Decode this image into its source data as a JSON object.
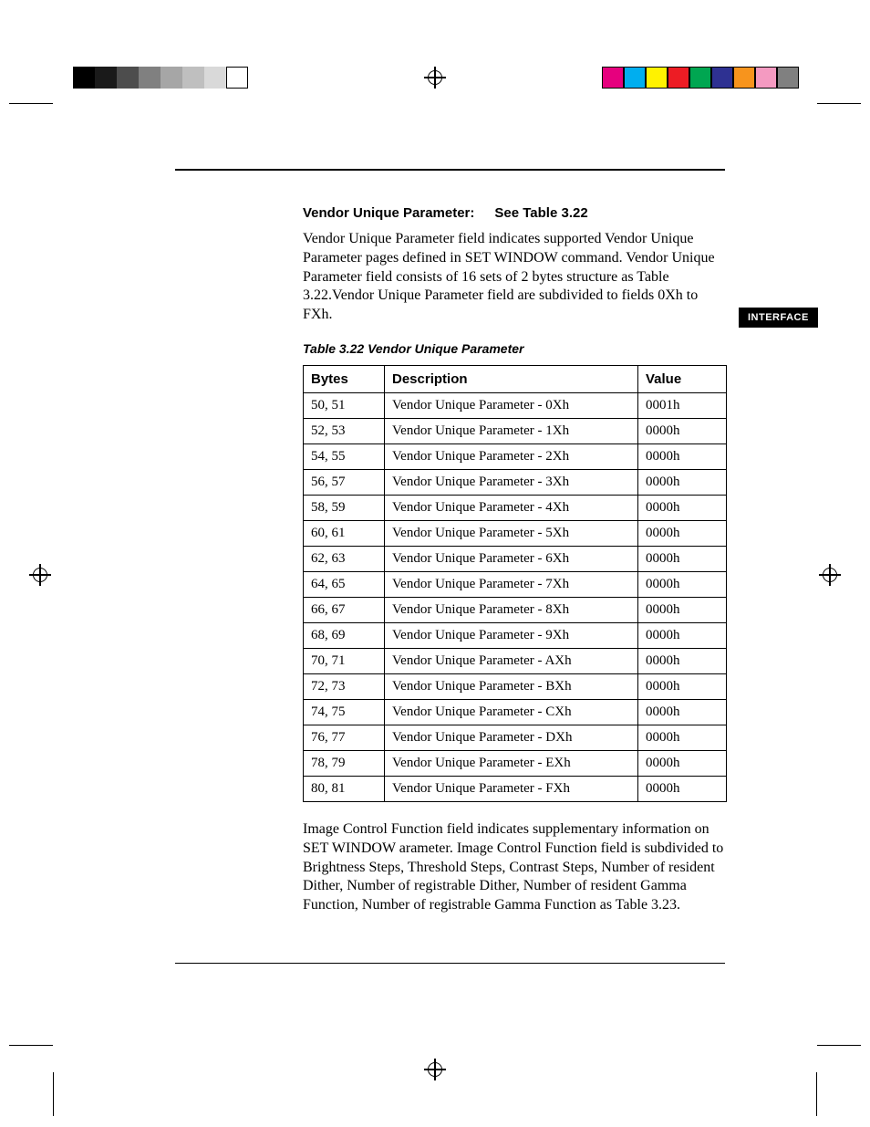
{
  "printer_marks": {
    "gray_steps": [
      "#000000",
      "#1a1a1a",
      "#4d4d4d",
      "#808080",
      "#a6a6a6",
      "#bfbfbf",
      "#d9d9d9",
      "#ffffff"
    ],
    "color_steps": [
      "#e6007e",
      "#00aeef",
      "#fff200",
      "#ed1c24",
      "#00a651",
      "#2e3192",
      "#f7941d",
      "#f49ac1",
      "#808080"
    ]
  },
  "side_tab": "INTERFACE",
  "heading_label": "Vendor Unique Parameter:",
  "heading_ref": "See Table 3.22",
  "intro_paragraph": "Vendor Unique Parameter field indicates supported Vendor Unique Parameter pages defined in SET WINDOW command. Vendor Unique Parameter field consists of 16 sets of 2 bytes structure as Table 3.22.Vendor Unique Parameter field are subdivided to fields 0Xh to FXh.",
  "table_caption": "Table 3.22 Vendor Unique Parameter",
  "table": {
    "columns": [
      "Bytes",
      "Description",
      "Value"
    ],
    "rows": [
      [
        "50, 51",
        "Vendor Unique Parameter - 0Xh",
        "0001h"
      ],
      [
        "52, 53",
        "Vendor Unique Parameter - 1Xh",
        "0000h"
      ],
      [
        "54, 55",
        "Vendor Unique Parameter - 2Xh",
        "0000h"
      ],
      [
        "56, 57",
        "Vendor Unique Parameter - 3Xh",
        "0000h"
      ],
      [
        "58, 59",
        "Vendor Unique Parameter - 4Xh",
        "0000h"
      ],
      [
        "60, 61",
        "Vendor Unique Parameter - 5Xh",
        "0000h"
      ],
      [
        "62, 63",
        "Vendor Unique Parameter - 6Xh",
        "0000h"
      ],
      [
        "64, 65",
        "Vendor Unique Parameter - 7Xh",
        "0000h"
      ],
      [
        "66, 67",
        "Vendor Unique Parameter - 8Xh",
        "0000h"
      ],
      [
        "68, 69",
        "Vendor Unique Parameter - 9Xh",
        "0000h"
      ],
      [
        "70, 71",
        "Vendor Unique Parameter - AXh",
        "0000h"
      ],
      [
        "72, 73",
        "Vendor Unique Parameter - BXh",
        "0000h"
      ],
      [
        "74, 75",
        "Vendor Unique Parameter - CXh",
        "0000h"
      ],
      [
        "76, 77",
        "Vendor Unique Parameter - DXh",
        "0000h"
      ],
      [
        "78, 79",
        "Vendor Unique Parameter - EXh",
        "0000h"
      ],
      [
        "80, 81",
        "Vendor Unique Parameter - FXh",
        "0000h"
      ]
    ]
  },
  "closing_paragraph": "Image Control Function field indicates supplementary information on SET WINDOW arameter. Image Control Function field is subdivided to Brightness Steps, Threshold Steps, Contrast Steps, Number of resident Dither, Number of registrable Dither, Number of resident Gamma Function, Number of registrable Gamma Function as Table 3.23."
}
